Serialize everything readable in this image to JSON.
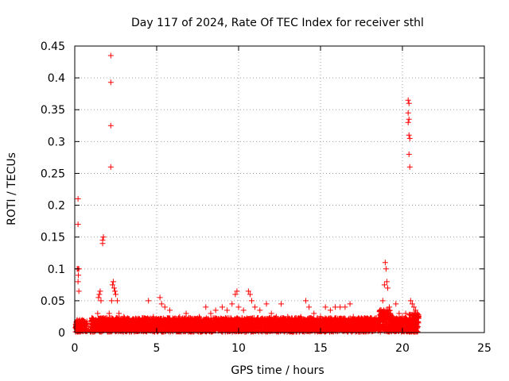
{
  "chart_data": {
    "type": "scatter",
    "title": "Day 117 of 2024, Rate Of TEC Index for receiver sthl",
    "xlabel": "GPS time / hours",
    "ylabel": "ROTI / TECUs",
    "xlim": [
      0,
      25
    ],
    "ylim": [
      0,
      0.45
    ],
    "xticks": [
      0,
      5,
      10,
      15,
      20,
      25
    ],
    "xtick_labels": [
      "0",
      "5",
      "10",
      "15",
      "20",
      "25"
    ],
    "yticks": [
      0,
      0.05,
      0.1,
      0.15,
      0.2,
      0.25,
      0.3,
      0.35,
      0.4,
      0.45
    ],
    "ytick_labels": [
      "0",
      "0.05",
      "0.1",
      "0.15",
      "0.2",
      "0.25",
      "0.3",
      "0.35",
      "0.4",
      "0.45"
    ],
    "grid": true,
    "marker": "+",
    "color": "#ff0000",
    "series": [
      {
        "name": "ROTI",
        "points": [
          [
            0.1,
            0.01
          ],
          [
            0.15,
            0.02
          ],
          [
            0.2,
            0.21
          ],
          [
            0.2,
            0.17
          ],
          [
            0.15,
            0.1
          ],
          [
            0.2,
            0.1
          ],
          [
            0.25,
            0.1
          ],
          [
            0.22,
            0.09
          ],
          [
            0.2,
            0.08
          ],
          [
            0.25,
            0.065
          ],
          [
            0.3,
            0.02
          ],
          [
            0.35,
            0.015
          ],
          [
            0.4,
            0.01
          ],
          [
            0.45,
            0.02
          ],
          [
            0.5,
            0.015
          ],
          [
            0.6,
            0.01
          ],
          [
            1.0,
            0.01
          ],
          [
            1.1,
            0.02
          ],
          [
            1.2,
            0.015
          ],
          [
            1.3,
            0.02
          ],
          [
            1.4,
            0.03
          ],
          [
            1.45,
            0.055
          ],
          [
            1.5,
            0.06
          ],
          [
            1.55,
            0.065
          ],
          [
            1.6,
            0.05
          ],
          [
            1.7,
            0.145
          ],
          [
            1.7,
            0.14
          ],
          [
            1.75,
            0.15
          ],
          [
            1.8,
            0.02
          ],
          [
            1.9,
            0.01
          ],
          [
            2.0,
            0.02
          ],
          [
            2.1,
            0.03
          ],
          [
            2.2,
            0.435
          ],
          [
            2.2,
            0.393
          ],
          [
            2.2,
            0.325
          ],
          [
            2.2,
            0.26
          ],
          [
            2.25,
            0.05
          ],
          [
            2.3,
            0.075
          ],
          [
            2.35,
            0.08
          ],
          [
            2.4,
            0.07
          ],
          [
            2.45,
            0.065
          ],
          [
            2.5,
            0.06
          ],
          [
            2.6,
            0.05
          ],
          [
            2.7,
            0.03
          ],
          [
            2.8,
            0.02
          ],
          [
            3.0,
            0.025
          ],
          [
            3.3,
            0.02
          ],
          [
            3.6,
            0.02
          ],
          [
            3.9,
            0.015
          ],
          [
            4.2,
            0.02
          ],
          [
            4.5,
            0.05
          ],
          [
            4.8,
            0.025
          ],
          [
            5.0,
            0.02
          ],
          [
            5.2,
            0.055
          ],
          [
            5.3,
            0.045
          ],
          [
            5.5,
            0.04
          ],
          [
            5.8,
            0.035
          ],
          [
            6.0,
            0.02
          ],
          [
            6.4,
            0.025
          ],
          [
            6.8,
            0.03
          ],
          [
            7.2,
            0.02
          ],
          [
            7.6,
            0.025
          ],
          [
            8.0,
            0.04
          ],
          [
            8.3,
            0.03
          ],
          [
            8.6,
            0.035
          ],
          [
            9.0,
            0.04
          ],
          [
            9.3,
            0.035
          ],
          [
            9.6,
            0.045
          ],
          [
            9.8,
            0.06
          ],
          [
            9.9,
            0.065
          ],
          [
            10.0,
            0.04
          ],
          [
            10.3,
            0.035
          ],
          [
            10.6,
            0.065
          ],
          [
            10.7,
            0.06
          ],
          [
            10.8,
            0.05
          ],
          [
            11.0,
            0.04
          ],
          [
            11.3,
            0.035
          ],
          [
            11.7,
            0.045
          ],
          [
            12.0,
            0.03
          ],
          [
            12.3,
            0.025
          ],
          [
            12.6,
            0.045
          ],
          [
            13.0,
            0.025
          ],
          [
            13.4,
            0.02
          ],
          [
            13.8,
            0.025
          ],
          [
            14.1,
            0.05
          ],
          [
            14.3,
            0.04
          ],
          [
            14.6,
            0.03
          ],
          [
            15.0,
            0.025
          ],
          [
            15.3,
            0.04
          ],
          [
            15.6,
            0.035
          ],
          [
            15.9,
            0.04
          ],
          [
            16.2,
            0.04
          ],
          [
            16.5,
            0.04
          ],
          [
            16.8,
            0.045
          ],
          [
            17.0,
            0.025
          ],
          [
            17.4,
            0.02
          ],
          [
            17.8,
            0.02
          ],
          [
            18.2,
            0.015
          ],
          [
            18.5,
            0.02
          ],
          [
            18.7,
            0.03
          ],
          [
            18.8,
            0.05
          ],
          [
            18.9,
            0.075
          ],
          [
            18.95,
            0.11
          ],
          [
            19.0,
            0.1
          ],
          [
            19.05,
            0.08
          ],
          [
            19.1,
            0.07
          ],
          [
            19.2,
            0.04
          ],
          [
            19.4,
            0.025
          ],
          [
            19.6,
            0.045
          ],
          [
            19.8,
            0.03
          ],
          [
            20.0,
            0.025
          ],
          [
            20.2,
            0.03
          ],
          [
            20.35,
            0.365
          ],
          [
            20.4,
            0.36
          ],
          [
            20.35,
            0.345
          ],
          [
            20.4,
            0.335
          ],
          [
            20.35,
            0.33
          ],
          [
            20.4,
            0.31
          ],
          [
            20.45,
            0.305
          ],
          [
            20.4,
            0.28
          ],
          [
            20.45,
            0.26
          ],
          [
            20.5,
            0.05
          ],
          [
            20.6,
            0.045
          ],
          [
            20.7,
            0.04
          ],
          [
            20.8,
            0.035
          ],
          [
            20.9,
            0.03
          ]
        ]
      }
    ]
  }
}
